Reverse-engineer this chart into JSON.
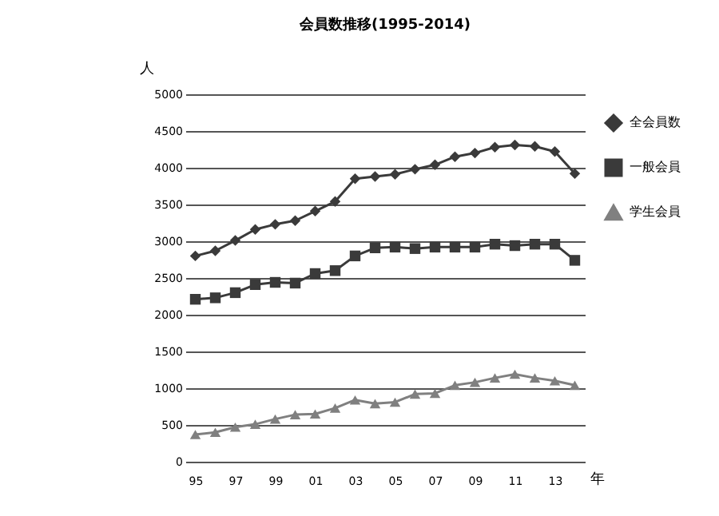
{
  "chart_data": {
    "type": "line",
    "title": "会員数推移(1995-2014)",
    "xlabel": "年",
    "ylabel": "人",
    "categories": [
      "95",
      null,
      "97",
      null,
      "99",
      null,
      "01",
      null,
      "03",
      null,
      "05",
      null,
      "07",
      null,
      "09",
      null,
      "11",
      null,
      "13",
      null
    ],
    "series": [
      {
        "name": "全会員数",
        "color": "#3a3a3a",
        "marker": "diamond",
        "values": [
          2800,
          2870,
          3010,
          3160,
          3230,
          3280,
          3410,
          3540,
          3850,
          3880,
          3910,
          3980,
          4040,
          4150,
          4200,
          4280,
          4310,
          4290,
          4220,
          3920
        ]
      },
      {
        "name": "一般会員",
        "color": "#3a3a3a",
        "marker": "square",
        "values": [
          2210,
          2230,
          2300,
          2410,
          2440,
          2430,
          2560,
          2600,
          2800,
          2910,
          2920,
          2900,
          2920,
          2920,
          2920,
          2960,
          2940,
          2960,
          2960,
          2740
        ]
      },
      {
        "name": "学生会員",
        "color": "#808080",
        "marker": "triangle",
        "values": [
          370,
          400,
          470,
          510,
          580,
          640,
          650,
          730,
          840,
          790,
          810,
          920,
          930,
          1040,
          1080,
          1140,
          1190,
          1140,
          1100,
          1040
        ]
      }
    ],
    "ylim": [
      0,
      5000
    ],
    "yticks": [
      0,
      500,
      1000,
      1500,
      2000,
      2500,
      3000,
      3500,
      4000,
      4500,
      5000
    ],
    "grid": "y",
    "legend": "top right",
    "line_style": "solid"
  }
}
